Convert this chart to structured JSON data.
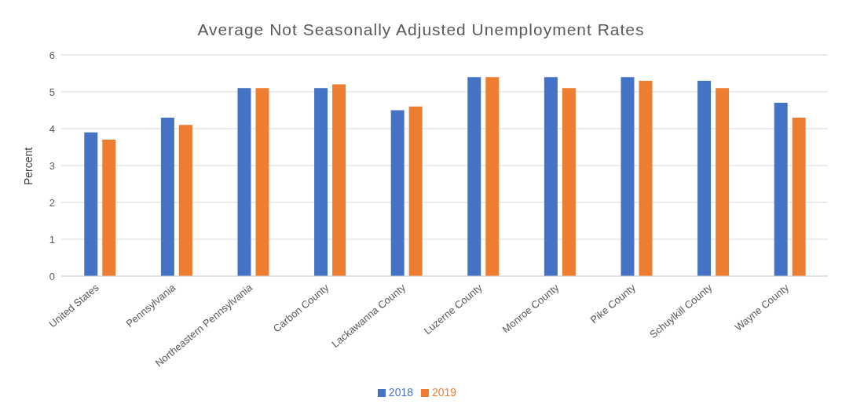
{
  "chart_data": {
    "type": "bar",
    "title": "Average Not Seasonally Adjusted Unemployment Rates",
    "ylabel": "Percent",
    "categories": [
      "United States",
      "Pennsylvania",
      "Northeastern Pennsylvania",
      "Carbon County",
      "Lackawanna County",
      "Luzerne County",
      "Monroe County",
      "Pike County",
      "Schuylkill County",
      "Wayne County"
    ],
    "series": [
      {
        "name": "2018",
        "color": "#4472c4",
        "values": [
          3.9,
          4.3,
          5.1,
          5.1,
          4.5,
          5.4,
          5.4,
          5.4,
          5.3,
          4.7
        ]
      },
      {
        "name": "2019",
        "color": "#ed7d31",
        "values": [
          3.7,
          4.1,
          5.1,
          5.2,
          4.6,
          5.4,
          5.1,
          5.3,
          5.1,
          4.3
        ]
      }
    ],
    "ylim": [
      0,
      6
    ],
    "yticks": [
      0,
      1,
      2,
      3,
      4,
      5,
      6
    ],
    "grid": "y",
    "legend": "bottom"
  }
}
